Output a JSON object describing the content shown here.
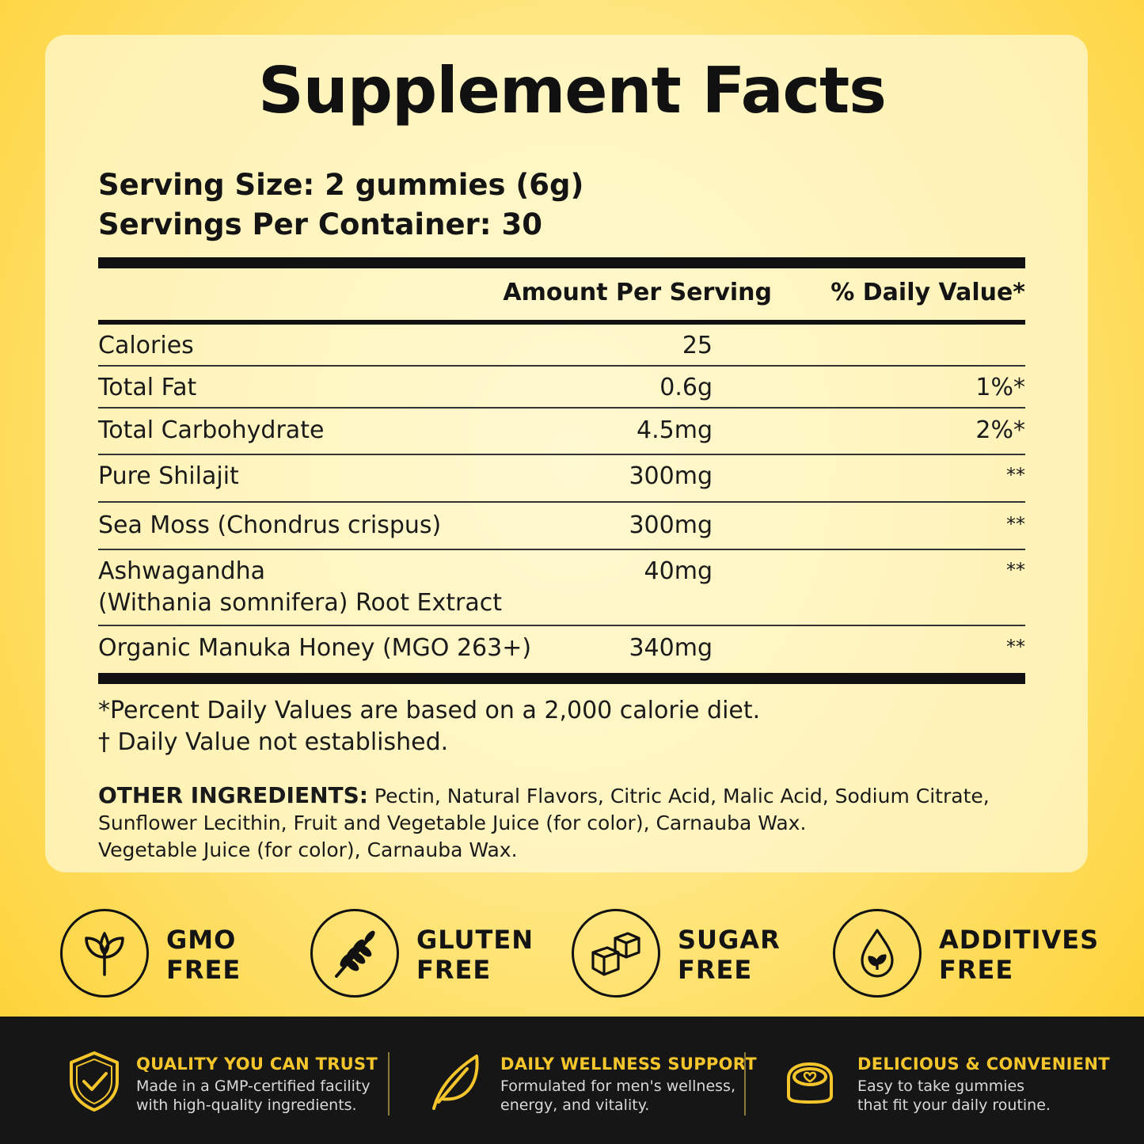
{
  "title": "Supplement Facts",
  "serving_size": "Serving Size: 2 gummies (6g)",
  "servings_per_container": "Servings Per Container: 30",
  "headers": {
    "amount": "Amount Per Serving",
    "daily_value": "% Daily Value*"
  },
  "rows": [
    {
      "name": "Calories",
      "amount": "25",
      "dv": ""
    },
    {
      "name": "Total Fat",
      "amount": "0.6g",
      "dv": "1%*"
    },
    {
      "name": "Total Carbohydrate",
      "amount": "4.5mg",
      "dv": "2%*"
    },
    {
      "name": "Pure Shilajit",
      "amount": "300mg",
      "dv": "**"
    },
    {
      "name": "Sea Moss (Chondrus crispus)",
      "amount": "300mg",
      "dv": "**"
    },
    {
      "name": "Ashwagandha",
      "name2": "(Withania somnifera) Root Extract",
      "amount": "40mg",
      "dv": "**"
    },
    {
      "name": "Organic Manuka Honey (MGO 263+)",
      "amount": "340mg",
      "dv": "**"
    }
  ],
  "footnotes": [
    "*Percent Daily Values are based on a 2,000 calorie diet.",
    "† Daily Value not established."
  ],
  "other_ingredients": {
    "label": "OTHER INGREDIENTS:",
    "line1": " Pectin, Natural Flavors, Citric Acid, Malic Acid, Sodium Citrate,",
    "line2": "Sunflower Lecithin, Fruit and  Vegetable Juice (for color), Carnauba Wax.",
    "line3": "Vegetable Juice (for color), Carnauba Wax."
  },
  "badges": [
    {
      "line1": "GMO",
      "line2": "FREE",
      "icon": "leaf-icon"
    },
    {
      "line1": "GLUTEN",
      "line2": "FREE",
      "icon": "wheat-icon"
    },
    {
      "line1": "SUGAR",
      "line2": "FREE",
      "icon": "sugar-cube-icon"
    },
    {
      "line1": "ADDITIVES",
      "line2": "FREE",
      "icon": "drop-icon"
    }
  ],
  "features": [
    {
      "title": "QUALITY YOU CAN TRUST",
      "desc1": "Made in a GMP-certified facility",
      "desc2": "with high-quality ingredients.",
      "icon": "shield-check-icon"
    },
    {
      "title": "DAILY WELLNESS SUPPORT",
      "desc1": "Formulated for men's wellness,",
      "desc2": "energy, and vitality.",
      "icon": "leaf-icon"
    },
    {
      "title": "DELICIOUS & CONVENIENT",
      "desc1": "Easy to take gummies",
      "desc2": "that fit your daily routine.",
      "icon": "gummy-icon"
    }
  ],
  "colors": {
    "accent": "#f5c52c",
    "dark": "#161616",
    "background": "#fdd02e"
  }
}
